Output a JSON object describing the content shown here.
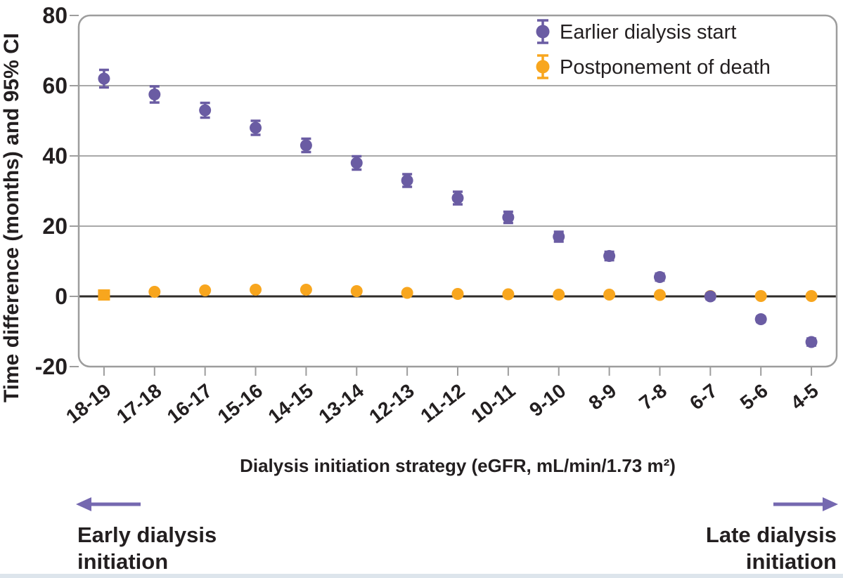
{
  "figure": {
    "background": "#ffffff",
    "text_color": "#231f20",
    "y_axis_title": "Time difference (months) and 95% CI",
    "x_axis_title": "Dialysis initiation strategy (eGFR, mL/min/1.73 m²)",
    "arrow_color": "#7568B0",
    "bottom_left_label_line1": "Early dialysis",
    "bottom_left_label_line2": "initiation",
    "bottom_right_label_line1": "Late dialysis",
    "bottom_right_label_line2": "initiation",
    "footer_bar_color": "#dde5ec",
    "frame_color": "#9d9d9d",
    "grid_color": "#a9a9a9",
    "zero_line_color": "#2e2b29"
  },
  "chart_data": {
    "type": "scatter",
    "title": "",
    "xlabel": "Dialysis initiation strategy (eGFR, mL/min/1.73 m²)",
    "ylabel": "Time difference (months) and 95% CI",
    "categories": [
      "18-19",
      "17-18",
      "16-17",
      "15-16",
      "14-15",
      "13-14",
      "12-13",
      "11-12",
      "10-11",
      "9-10",
      "8-9",
      "7-8",
      "6-7",
      "5-6",
      "4-5"
    ],
    "ylim": [
      -20,
      80
    ],
    "yticks": [
      80,
      60,
      40,
      20,
      0,
      -20
    ],
    "gridlines": [
      60,
      40,
      20
    ],
    "zero_line": 0,
    "grid": true,
    "legend_position": "top-right",
    "series": [
      {
        "name": "Earlier dialysis start",
        "color": "#6A5CA3",
        "marker": "circle-errorbar",
        "values": [
          62,
          57.5,
          53,
          48,
          43,
          38,
          33,
          28,
          22.5,
          17,
          11.5,
          5.5,
          0,
          -6.5,
          -13
        ],
        "ci_half": [
          2.5,
          2.3,
          2.1,
          2.0,
          1.9,
          1.9,
          1.8,
          1.8,
          1.6,
          1.4,
          1.2,
          1.0,
          0.8,
          0.8,
          1.0
        ]
      },
      {
        "name": "Postponement of death",
        "color": "#F8A61E",
        "marker": "circle-errorbar",
        "first_marker": "square",
        "values": [
          0.4,
          1.3,
          1.7,
          1.9,
          1.9,
          1.5,
          1.0,
          0.7,
          0.6,
          0.5,
          0.5,
          0.4,
          0.1,
          0.1,
          0.1
        ],
        "ci_half": [
          1.6,
          0.5,
          0.5,
          0.5,
          0.5,
          0.4,
          0.4,
          0.3,
          0.3,
          0.3,
          0.3,
          0.3,
          0.2,
          0.2,
          0.2
        ]
      }
    ]
  }
}
